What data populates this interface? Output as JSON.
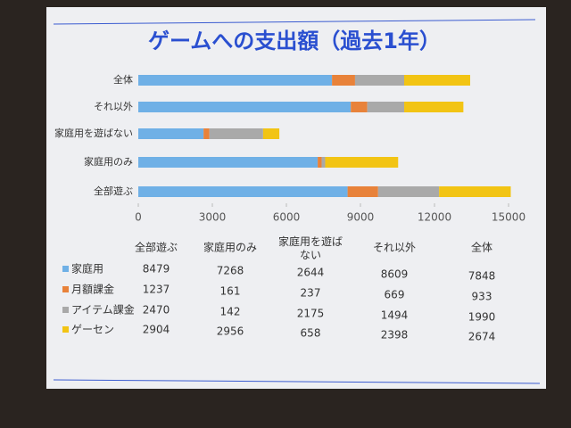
{
  "chart_data": {
    "type": "stacked-bar-horizontal",
    "title": "ゲームへの支出額（過去1年）",
    "categories": [
      "全部遊ぶ",
      "家庭用のみ",
      "家庭用を遊ばない",
      "それ以外",
      "全体"
    ],
    "series": [
      {
        "name": "家庭用",
        "color": "#6fb0e6",
        "values": [
          8479,
          7268,
          2644,
          8609,
          7848
        ]
      },
      {
        "name": "月額課金",
        "color": "#e8823a",
        "values": [
          1237,
          161,
          237,
          669,
          933
        ]
      },
      {
        "name": "アイテム課金",
        "color": "#a9a9a9",
        "values": [
          2470,
          142,
          2175,
          1494,
          1990
        ]
      },
      {
        "name": "ゲーセン",
        "color": "#f2c414",
        "values": [
          2904,
          2956,
          658,
          2398,
          2674
        ]
      }
    ],
    "xlim": [
      0,
      15000
    ],
    "xticks": [
      0,
      3000,
      6000,
      9000,
      12000,
      15000
    ]
  }
}
